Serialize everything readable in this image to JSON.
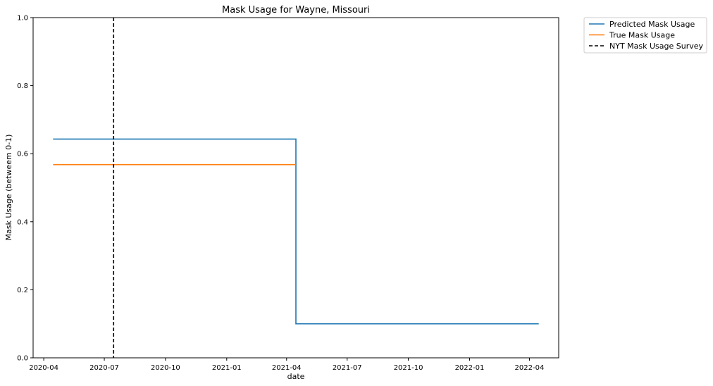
{
  "chart_data": {
    "type": "line",
    "title": "Mask Usage for Wayne, Missouri",
    "xlabel": "date",
    "ylabel": "Mask Usage (betweem 0-1)",
    "ylim": [
      0,
      1
    ],
    "xlim": [
      "2020-03-16",
      "2022-05-15"
    ],
    "x_ticks": [
      "2020-04",
      "2020-07",
      "2020-10",
      "2021-01",
      "2021-04",
      "2021-07",
      "2021-10",
      "2022-01",
      "2022-04"
    ],
    "y_ticks": [
      "0.0",
      "0.2",
      "0.4",
      "0.6",
      "0.8",
      "1.0"
    ],
    "legend_position": "outside-top-right",
    "grid": false,
    "series": [
      {
        "name": "Predicted Mask Usage",
        "color": "#1f77b4",
        "style": "solid",
        "points": [
          {
            "x": "2020-04-15",
            "y": 0.643
          },
          {
            "x": "2021-04-15",
            "y": 0.643
          },
          {
            "x": "2021-04-15",
            "y": 0.1
          },
          {
            "x": "2022-04-15",
            "y": 0.1
          }
        ]
      },
      {
        "name": "True Mask Usage",
        "color": "#ff7f0e",
        "style": "solid",
        "points": [
          {
            "x": "2020-04-15",
            "y": 0.568
          },
          {
            "x": "2021-04-15",
            "y": 0.568
          }
        ]
      },
      {
        "name": "NYT Mask Usage Survey",
        "color": "#000000",
        "style": "dashed",
        "vline_x": "2020-07-15"
      }
    ]
  }
}
